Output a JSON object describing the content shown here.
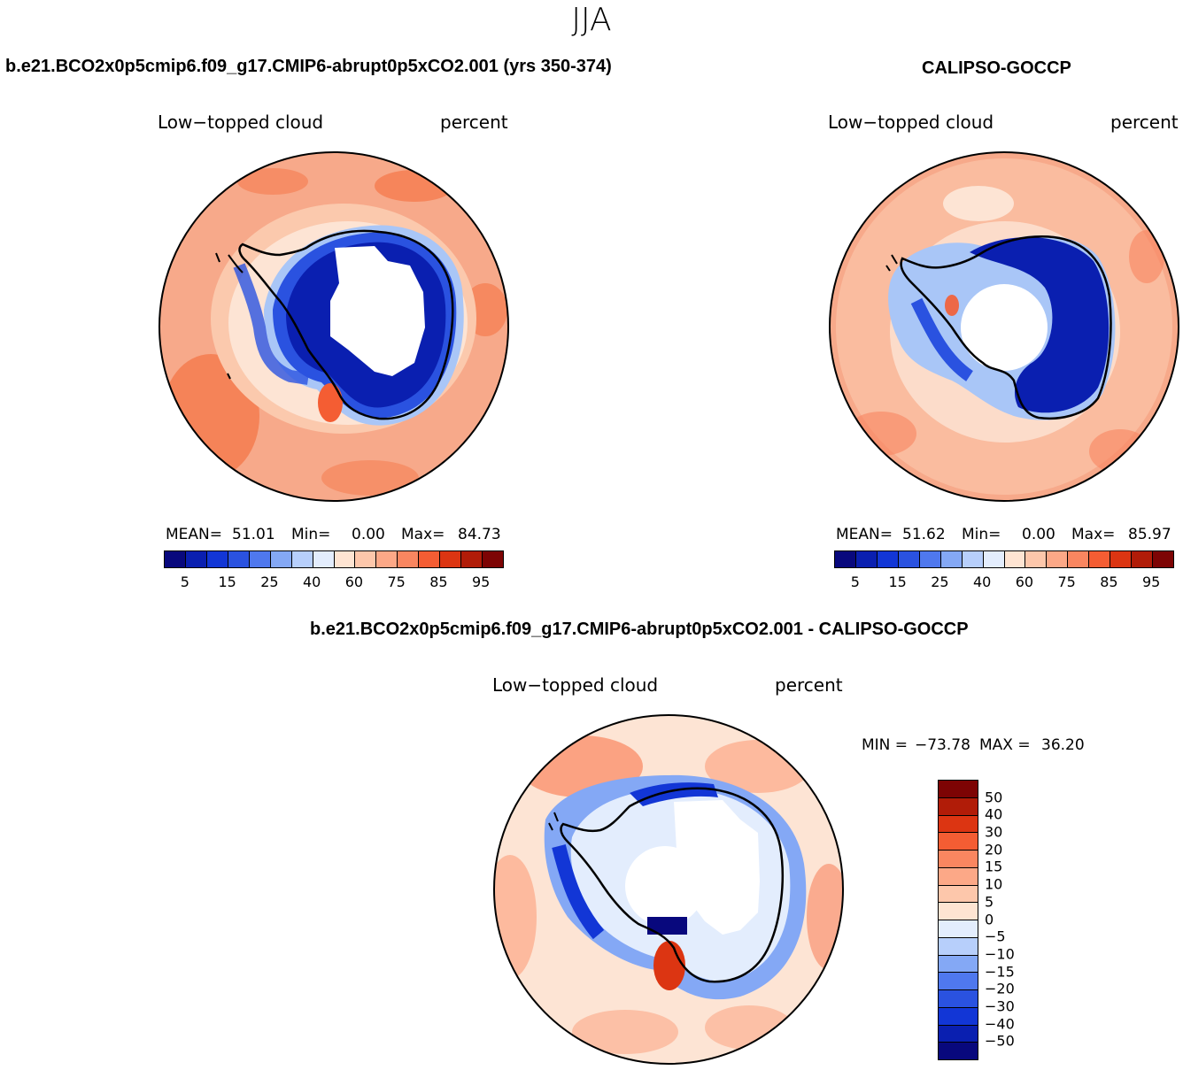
{
  "season": "JJA",
  "colors": {
    "ocean_warm": "#f7a98a",
    "ocean_light": "#fbc9ad",
    "ocean_hot": "#f57c4f",
    "ice_dark": "#0a1fb0",
    "ice_mid": "#2a52e0",
    "ice_light": "#a9c6f7",
    "land_white": "#ffffff",
    "coast": "#000000"
  },
  "panel_model": {
    "title": "b.e21.BCO2x0p5cmip6.f09_g17.CMIP6-abrupt0p5xCO2.001 (yrs 350-374)",
    "variable": "Low−topped cloud",
    "units": "percent",
    "mean_label": "MEAN=",
    "mean": "51.01",
    "min_label": "Min=",
    "min": "0.00",
    "max_label": "Max=",
    "max": "84.73"
  },
  "panel_obs": {
    "title": "CALIPSO-GOCCP",
    "variable": "Low−topped cloud",
    "units": "percent",
    "mean_label": "MEAN=",
    "mean": "51.62",
    "min_label": "Min=",
    "min": "0.00",
    "max_label": "Max=",
    "max": "85.97"
  },
  "panel_diff": {
    "title": "b.e21.BCO2x0p5cmip6.f09_g17.CMIP6-abrupt0p5xCO2.001 - CALIPSO-GOCCP",
    "variable": "Low−topped cloud",
    "units": "percent",
    "min_label": "MIN =",
    "min": "−73.78",
    "max_label": "MAX =",
    "max": "36.20"
  },
  "chart_data": [
    {
      "type": "heatmap",
      "title": "b.e21.BCO2x0p5cmip6.f09_g17.CMIP6-abrupt0p5xCO2.001 (yrs 350-374)",
      "projection": "south polar stereographic",
      "variable": "Low−topped cloud",
      "units": "percent",
      "mean": 51.01,
      "min": 0.0,
      "max": 84.73,
      "colorbar_levels": [
        5,
        10,
        15,
        20,
        25,
        30,
        40,
        50,
        60,
        70,
        75,
        80,
        85,
        90,
        95
      ],
      "colorbar_tick_labels": [
        "5",
        "15",
        "25",
        "40",
        "60",
        "75",
        "85",
        "95"
      ],
      "colorbar_colors": [
        "#08087d",
        "#0a1fb0",
        "#1236d6",
        "#2a52e0",
        "#4f78ee",
        "#84a8f5",
        "#b7cffb",
        "#e3edfd",
        "#fee4d2",
        "#fdc7ab",
        "#fca887",
        "#f98660",
        "#f45d33",
        "#dc3512",
        "#b11c08",
        "#7d0404"
      ]
    },
    {
      "type": "heatmap",
      "title": "CALIPSO-GOCCP",
      "projection": "south polar stereographic",
      "variable": "Low−topped cloud",
      "units": "percent",
      "mean": 51.62,
      "min": 0.0,
      "max": 85.97,
      "colorbar_levels": [
        5,
        10,
        15,
        20,
        25,
        30,
        40,
        50,
        60,
        70,
        75,
        80,
        85,
        90,
        95
      ],
      "colorbar_tick_labels": [
        "5",
        "15",
        "25",
        "40",
        "60",
        "75",
        "85",
        "95"
      ],
      "colorbar_colors": [
        "#08087d",
        "#0a1fb0",
        "#1236d6",
        "#2a52e0",
        "#4f78ee",
        "#84a8f5",
        "#b7cffb",
        "#e3edfd",
        "#fee4d2",
        "#fdc7ab",
        "#fca887",
        "#f98660",
        "#f45d33",
        "#dc3512",
        "#b11c08",
        "#7d0404"
      ]
    },
    {
      "type": "heatmap",
      "title": "b.e21.BCO2x0p5cmip6.f09_g17.CMIP6-abrupt0p5xCO2.001 - CALIPSO-GOCCP",
      "projection": "south polar stereographic",
      "variable": "Low−topped cloud",
      "units": "percent",
      "min": -73.78,
      "max": 36.2,
      "colorbar_tick_labels": [
        "50",
        "40",
        "30",
        "20",
        "15",
        "10",
        "5",
        "0",
        "−5",
        "−10",
        "−15",
        "−20",
        "−30",
        "−40",
        "−50"
      ],
      "colorbar_colors": [
        "#7d0404",
        "#b11c08",
        "#dc3512",
        "#f45d33",
        "#f98660",
        "#fca887",
        "#fdc7ab",
        "#fee4d2",
        "#e3edfd",
        "#b7cffb",
        "#84a8f5",
        "#4f78ee",
        "#2a52e0",
        "#1236d6",
        "#0a1fb0",
        "#08087d"
      ]
    }
  ]
}
